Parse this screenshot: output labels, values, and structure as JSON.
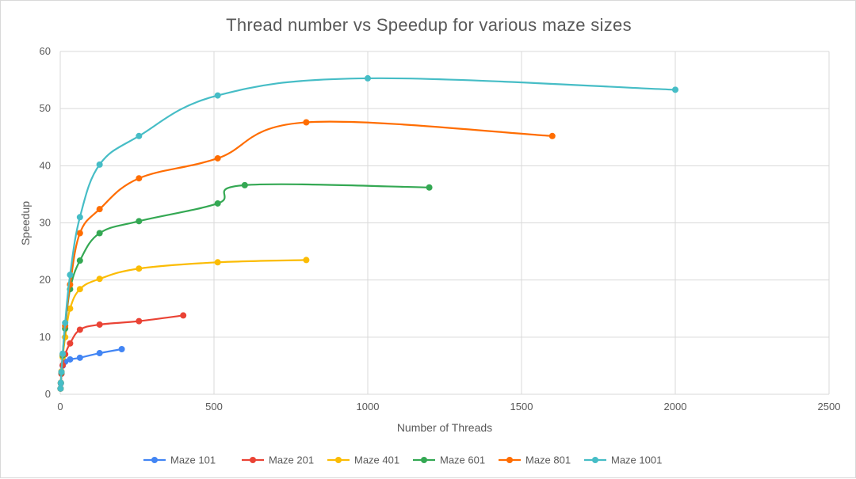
{
  "chart_data": {
    "type": "line",
    "title": "Thread number vs Speedup for various maze sizes",
    "xlabel": "Number of Threads",
    "ylabel": "Speedup",
    "xlim": [
      0,
      2500
    ],
    "ylim": [
      0,
      60
    ],
    "x_ticks": [
      0,
      500,
      1000,
      1500,
      2000,
      2500
    ],
    "y_ticks": [
      0,
      10,
      20,
      30,
      40,
      50,
      60
    ],
    "grid": true,
    "legend_position": "bottom",
    "smooth": true,
    "series": [
      {
        "name": "Maze 101",
        "color": "#4285f4",
        "x": [
          1,
          2,
          4,
          8,
          16,
          32,
          64,
          128,
          200
        ],
        "y": [
          1.0,
          1.9,
          3.6,
          5.0,
          5.7,
          6.1,
          6.4,
          7.2,
          7.9
        ]
      },
      {
        "name": "Maze 201",
        "color": "#ea4335",
        "x": [
          1,
          2,
          4,
          8,
          16,
          32,
          64,
          128,
          256,
          400
        ],
        "y": [
          1.0,
          2.0,
          3.6,
          5.1,
          7.0,
          8.9,
          11.3,
          12.2,
          12.8,
          13.8
        ]
      },
      {
        "name": "Maze 401",
        "color": "#fbbc04",
        "x": [
          1,
          2,
          4,
          8,
          16,
          32,
          64,
          128,
          256,
          512,
          800
        ],
        "y": [
          1.0,
          2.0,
          4.0,
          6.5,
          10.0,
          15.0,
          18.4,
          20.2,
          22.0,
          23.1,
          23.5
        ]
      },
      {
        "name": "Maze 601",
        "color": "#34a853",
        "x": [
          1,
          2,
          4,
          8,
          16,
          32,
          64,
          128,
          256,
          512,
          600,
          1200
        ],
        "y": [
          1.0,
          2.0,
          3.8,
          6.8,
          11.5,
          18.4,
          23.4,
          28.2,
          30.3,
          33.4,
          36.6,
          36.2
        ]
      },
      {
        "name": "Maze 801",
        "color": "#ff6d01",
        "x": [
          1,
          2,
          4,
          8,
          16,
          32,
          64,
          128,
          256,
          512,
          800,
          1600
        ],
        "y": [
          1.0,
          2.0,
          3.9,
          7.0,
          12.0,
          19.2,
          28.2,
          32.4,
          37.8,
          41.3,
          47.6,
          45.2
        ]
      },
      {
        "name": "Maze 1001",
        "color": "#46bdc6",
        "x": [
          1,
          2,
          4,
          8,
          16,
          32,
          64,
          128,
          256,
          512,
          1000,
          2000
        ],
        "y": [
          1.0,
          2.0,
          3.9,
          7.1,
          12.5,
          20.9,
          31.0,
          40.2,
          45.2,
          52.3,
          55.3,
          53.3
        ]
      }
    ]
  }
}
